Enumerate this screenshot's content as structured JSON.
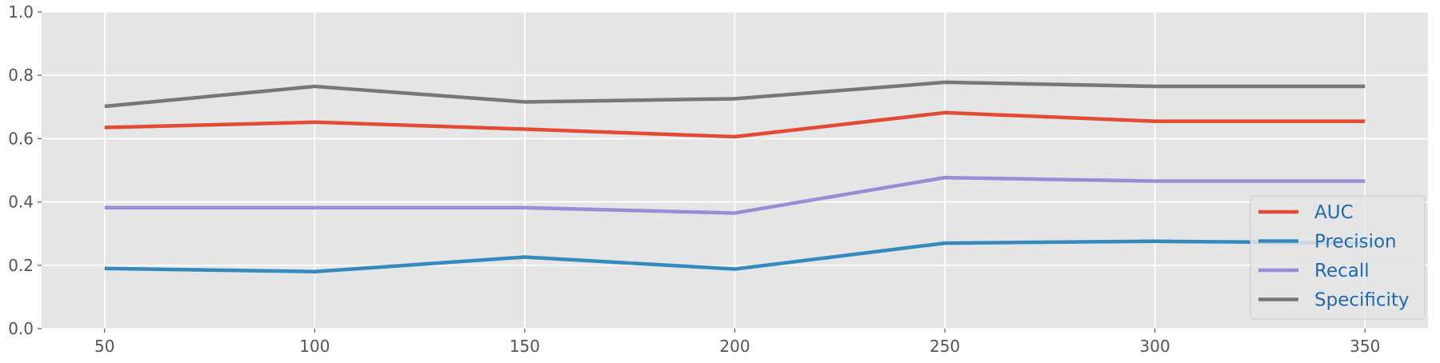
{
  "chart_data": {
    "type": "line",
    "title": "",
    "xlabel": "",
    "ylabel": "",
    "x": [
      50,
      100,
      150,
      200,
      250,
      300,
      350
    ],
    "xlim": [
      35,
      365
    ],
    "ylim": [
      0,
      1.0
    ],
    "xticks": [
      50,
      100,
      150,
      200,
      250,
      300,
      350
    ],
    "yticks": [
      0.0,
      0.2,
      0.4,
      0.6,
      0.8,
      1.0
    ],
    "ytick_labels": [
      "0.0",
      "0.2",
      "0.4",
      "0.6",
      "0.8",
      "1.0"
    ],
    "grid": true,
    "background": "#e5e5e5",
    "grid_color": "#ffffff",
    "legend_position": "lower-right",
    "legend_text_color": "#1f6bb3",
    "series": [
      {
        "name": "AUC",
        "color": "#e24a33",
        "values": [
          0.635,
          0.652,
          0.63,
          0.606,
          0.682,
          0.655,
          0.655
        ]
      },
      {
        "name": "Precision",
        "color": "#348abd",
        "values": [
          0.19,
          0.18,
          0.226,
          0.188,
          0.27,
          0.276,
          0.27
        ]
      },
      {
        "name": "Recall",
        "color": "#988ed5",
        "values": [
          0.382,
          0.382,
          0.382,
          0.365,
          0.477,
          0.466,
          0.466
        ]
      },
      {
        "name": "Specificity",
        "color": "#777777",
        "values": [
          0.702,
          0.765,
          0.716,
          0.726,
          0.778,
          0.765,
          0.765
        ]
      }
    ]
  }
}
